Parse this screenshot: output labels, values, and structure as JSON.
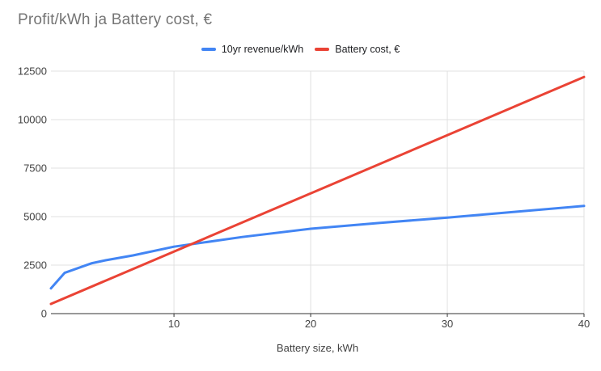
{
  "chart_data": {
    "type": "line",
    "title": "Profit/kWh ja Battery cost, €",
    "xlabel": "Battery size, kWh",
    "ylabel": "",
    "x_range": [
      1,
      40
    ],
    "y_range": [
      0,
      12500
    ],
    "x_ticks": [
      10,
      20,
      30,
      40
    ],
    "y_ticks": [
      0,
      2500,
      5000,
      7500,
      10000,
      12500
    ],
    "grid": true,
    "legend_position": "top-center",
    "colors": {
      "gridline": "#e0e0e0",
      "axis_line": "#333333",
      "tick_label": "#424242",
      "title_text": "#757575",
      "legend_text": "#202124",
      "background": "#ffffff"
    },
    "series": [
      {
        "name": "10yr revenue/kWh",
        "color": "#4285f4",
        "points": [
          [
            1,
            1300
          ],
          [
            2,
            2100
          ],
          [
            3,
            2350
          ],
          [
            4,
            2600
          ],
          [
            5,
            2750
          ],
          [
            7,
            3000
          ],
          [
            10,
            3450
          ],
          [
            15,
            3950
          ],
          [
            20,
            4375
          ],
          [
            25,
            4670
          ],
          [
            30,
            4950
          ],
          [
            35,
            5250
          ],
          [
            40,
            5550
          ]
        ]
      },
      {
        "name": "Battery cost, €",
        "color": "#ea4335",
        "points": [
          [
            1,
            500
          ],
          [
            10,
            3200
          ],
          [
            20,
            6200
          ],
          [
            30,
            9200
          ],
          [
            40,
            12200
          ]
        ]
      }
    ]
  }
}
